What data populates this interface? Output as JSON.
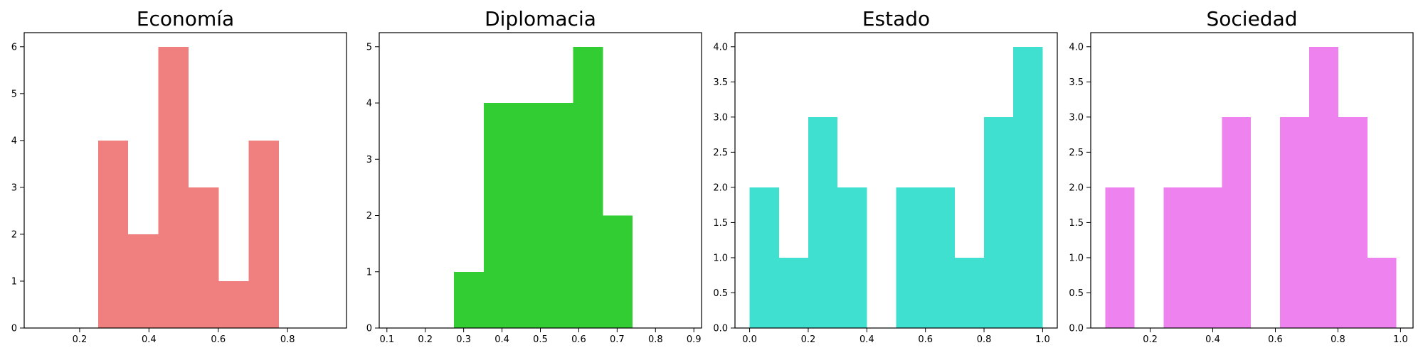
{
  "chart_data": [
    {
      "type": "bar",
      "title": "Economía",
      "color": "#f08080",
      "xlim": [
        0.04,
        0.97
      ],
      "ylim": [
        0,
        6.3
      ],
      "xticks": [
        {
          "v": 0.2,
          "label": "0.2"
        },
        {
          "v": 0.4,
          "label": "0.4"
        },
        {
          "v": 0.6,
          "label": "0.6"
        },
        {
          "v": 0.8,
          "label": "0.8"
        }
      ],
      "yticks": [
        {
          "v": 0,
          "label": "0"
        },
        {
          "v": 1,
          "label": "1"
        },
        {
          "v": 2,
          "label": "2"
        },
        {
          "v": 3,
          "label": "3"
        },
        {
          "v": 4,
          "label": "4"
        },
        {
          "v": 5,
          "label": "5"
        },
        {
          "v": 6,
          "label": "6"
        }
      ],
      "bins": [
        {
          "x0": 0.253,
          "x1": 0.34,
          "count": 4
        },
        {
          "x0": 0.34,
          "x1": 0.427,
          "count": 2
        },
        {
          "x0": 0.427,
          "x1": 0.514,
          "count": 6
        },
        {
          "x0": 0.514,
          "x1": 0.601,
          "count": 3
        },
        {
          "x0": 0.601,
          "x1": 0.688,
          "count": 1
        },
        {
          "x0": 0.688,
          "x1": 0.775,
          "count": 4
        }
      ]
    },
    {
      "type": "bar",
      "title": "Diplomacia",
      "color": "#32cd32",
      "xlim": [
        0.08,
        0.92
      ],
      "ylim": [
        0,
        5.25
      ],
      "xticks": [
        {
          "v": 0.1,
          "label": "0.1"
        },
        {
          "v": 0.2,
          "label": "0.2"
        },
        {
          "v": 0.3,
          "label": "0.3"
        },
        {
          "v": 0.4,
          "label": "0.4"
        },
        {
          "v": 0.5,
          "label": "0.5"
        },
        {
          "v": 0.6,
          "label": "0.6"
        },
        {
          "v": 0.7,
          "label": "0.7"
        },
        {
          "v": 0.8,
          "label": "0.8"
        },
        {
          "v": 0.9,
          "label": "0.9"
        }
      ],
      "yticks": [
        {
          "v": 0,
          "label": "0"
        },
        {
          "v": 1,
          "label": "1"
        },
        {
          "v": 2,
          "label": "2"
        },
        {
          "v": 3,
          "label": "3"
        },
        {
          "v": 4,
          "label": "4"
        },
        {
          "v": 5,
          "label": "5"
        }
      ],
      "bins": [
        {
          "x0": 0.275,
          "x1": 0.353,
          "count": 1
        },
        {
          "x0": 0.353,
          "x1": 0.43,
          "count": 4
        },
        {
          "x0": 0.43,
          "x1": 0.508,
          "count": 4
        },
        {
          "x0": 0.508,
          "x1": 0.585,
          "count": 4
        },
        {
          "x0": 0.585,
          "x1": 0.663,
          "count": 5
        },
        {
          "x0": 0.663,
          "x1": 0.74,
          "count": 2
        }
      ]
    },
    {
      "type": "bar",
      "title": "Estado",
      "color": "#40e0d0",
      "xlim": [
        -0.05,
        1.05
      ],
      "ylim": [
        0,
        4.2
      ],
      "xticks": [
        {
          "v": 0.0,
          "label": "0.0"
        },
        {
          "v": 0.2,
          "label": "0.2"
        },
        {
          "v": 0.4,
          "label": "0.4"
        },
        {
          "v": 0.6,
          "label": "0.6"
        },
        {
          "v": 0.8,
          "label": "0.8"
        },
        {
          "v": 1.0,
          "label": "1.0"
        }
      ],
      "yticks": [
        {
          "v": 0.0,
          "label": "0.0"
        },
        {
          "v": 0.5,
          "label": "0.5"
        },
        {
          "v": 1.0,
          "label": "1.0"
        },
        {
          "v": 1.5,
          "label": "1.5"
        },
        {
          "v": 2.0,
          "label": "2.0"
        },
        {
          "v": 2.5,
          "label": "2.5"
        },
        {
          "v": 3.0,
          "label": "3.0"
        },
        {
          "v": 3.5,
          "label": "3.5"
        },
        {
          "v": 4.0,
          "label": "4.0"
        }
      ],
      "bins": [
        {
          "x0": 0.0,
          "x1": 0.1,
          "count": 2
        },
        {
          "x0": 0.1,
          "x1": 0.2,
          "count": 1
        },
        {
          "x0": 0.2,
          "x1": 0.3,
          "count": 3
        },
        {
          "x0": 0.3,
          "x1": 0.4,
          "count": 2
        },
        {
          "x0": 0.4,
          "x1": 0.5,
          "count": 0
        },
        {
          "x0": 0.5,
          "x1": 0.6,
          "count": 2
        },
        {
          "x0": 0.6,
          "x1": 0.7,
          "count": 2
        },
        {
          "x0": 0.7,
          "x1": 0.8,
          "count": 1
        },
        {
          "x0": 0.8,
          "x1": 0.9,
          "count": 3
        },
        {
          "x0": 0.9,
          "x1": 1.0,
          "count": 4
        }
      ]
    },
    {
      "type": "bar",
      "title": "Sociedad",
      "color": "#ee82ee",
      "xlim": [
        0.01,
        1.04
      ],
      "ylim": [
        0,
        4.2
      ],
      "xticks": [
        {
          "v": 0.2,
          "label": "0.2"
        },
        {
          "v": 0.4,
          "label": "0.4"
        },
        {
          "v": 0.6,
          "label": "0.6"
        },
        {
          "v": 0.8,
          "label": "0.8"
        },
        {
          "v": 1.0,
          "label": "1.0"
        }
      ],
      "yticks": [
        {
          "v": 0.0,
          "label": "0.0"
        },
        {
          "v": 0.5,
          "label": "0.5"
        },
        {
          "v": 1.0,
          "label": "1.0"
        },
        {
          "v": 1.5,
          "label": "1.5"
        },
        {
          "v": 2.0,
          "label": "2.0"
        },
        {
          "v": 2.5,
          "label": "2.5"
        },
        {
          "v": 3.0,
          "label": "3.0"
        },
        {
          "v": 3.5,
          "label": "3.5"
        },
        {
          "v": 4.0,
          "label": "4.0"
        }
      ],
      "bins": [
        {
          "x0": 0.057,
          "x1": 0.15,
          "count": 2
        },
        {
          "x0": 0.15,
          "x1": 0.243,
          "count": 0
        },
        {
          "x0": 0.243,
          "x1": 0.336,
          "count": 2
        },
        {
          "x0": 0.336,
          "x1": 0.429,
          "count": 2
        },
        {
          "x0": 0.429,
          "x1": 0.522,
          "count": 3
        },
        {
          "x0": 0.522,
          "x1": 0.615,
          "count": 0
        },
        {
          "x0": 0.615,
          "x1": 0.708,
          "count": 3
        },
        {
          "x0": 0.708,
          "x1": 0.801,
          "count": 4
        },
        {
          "x0": 0.801,
          "x1": 0.894,
          "count": 3
        },
        {
          "x0": 0.894,
          "x1": 0.987,
          "count": 1
        }
      ]
    }
  ]
}
